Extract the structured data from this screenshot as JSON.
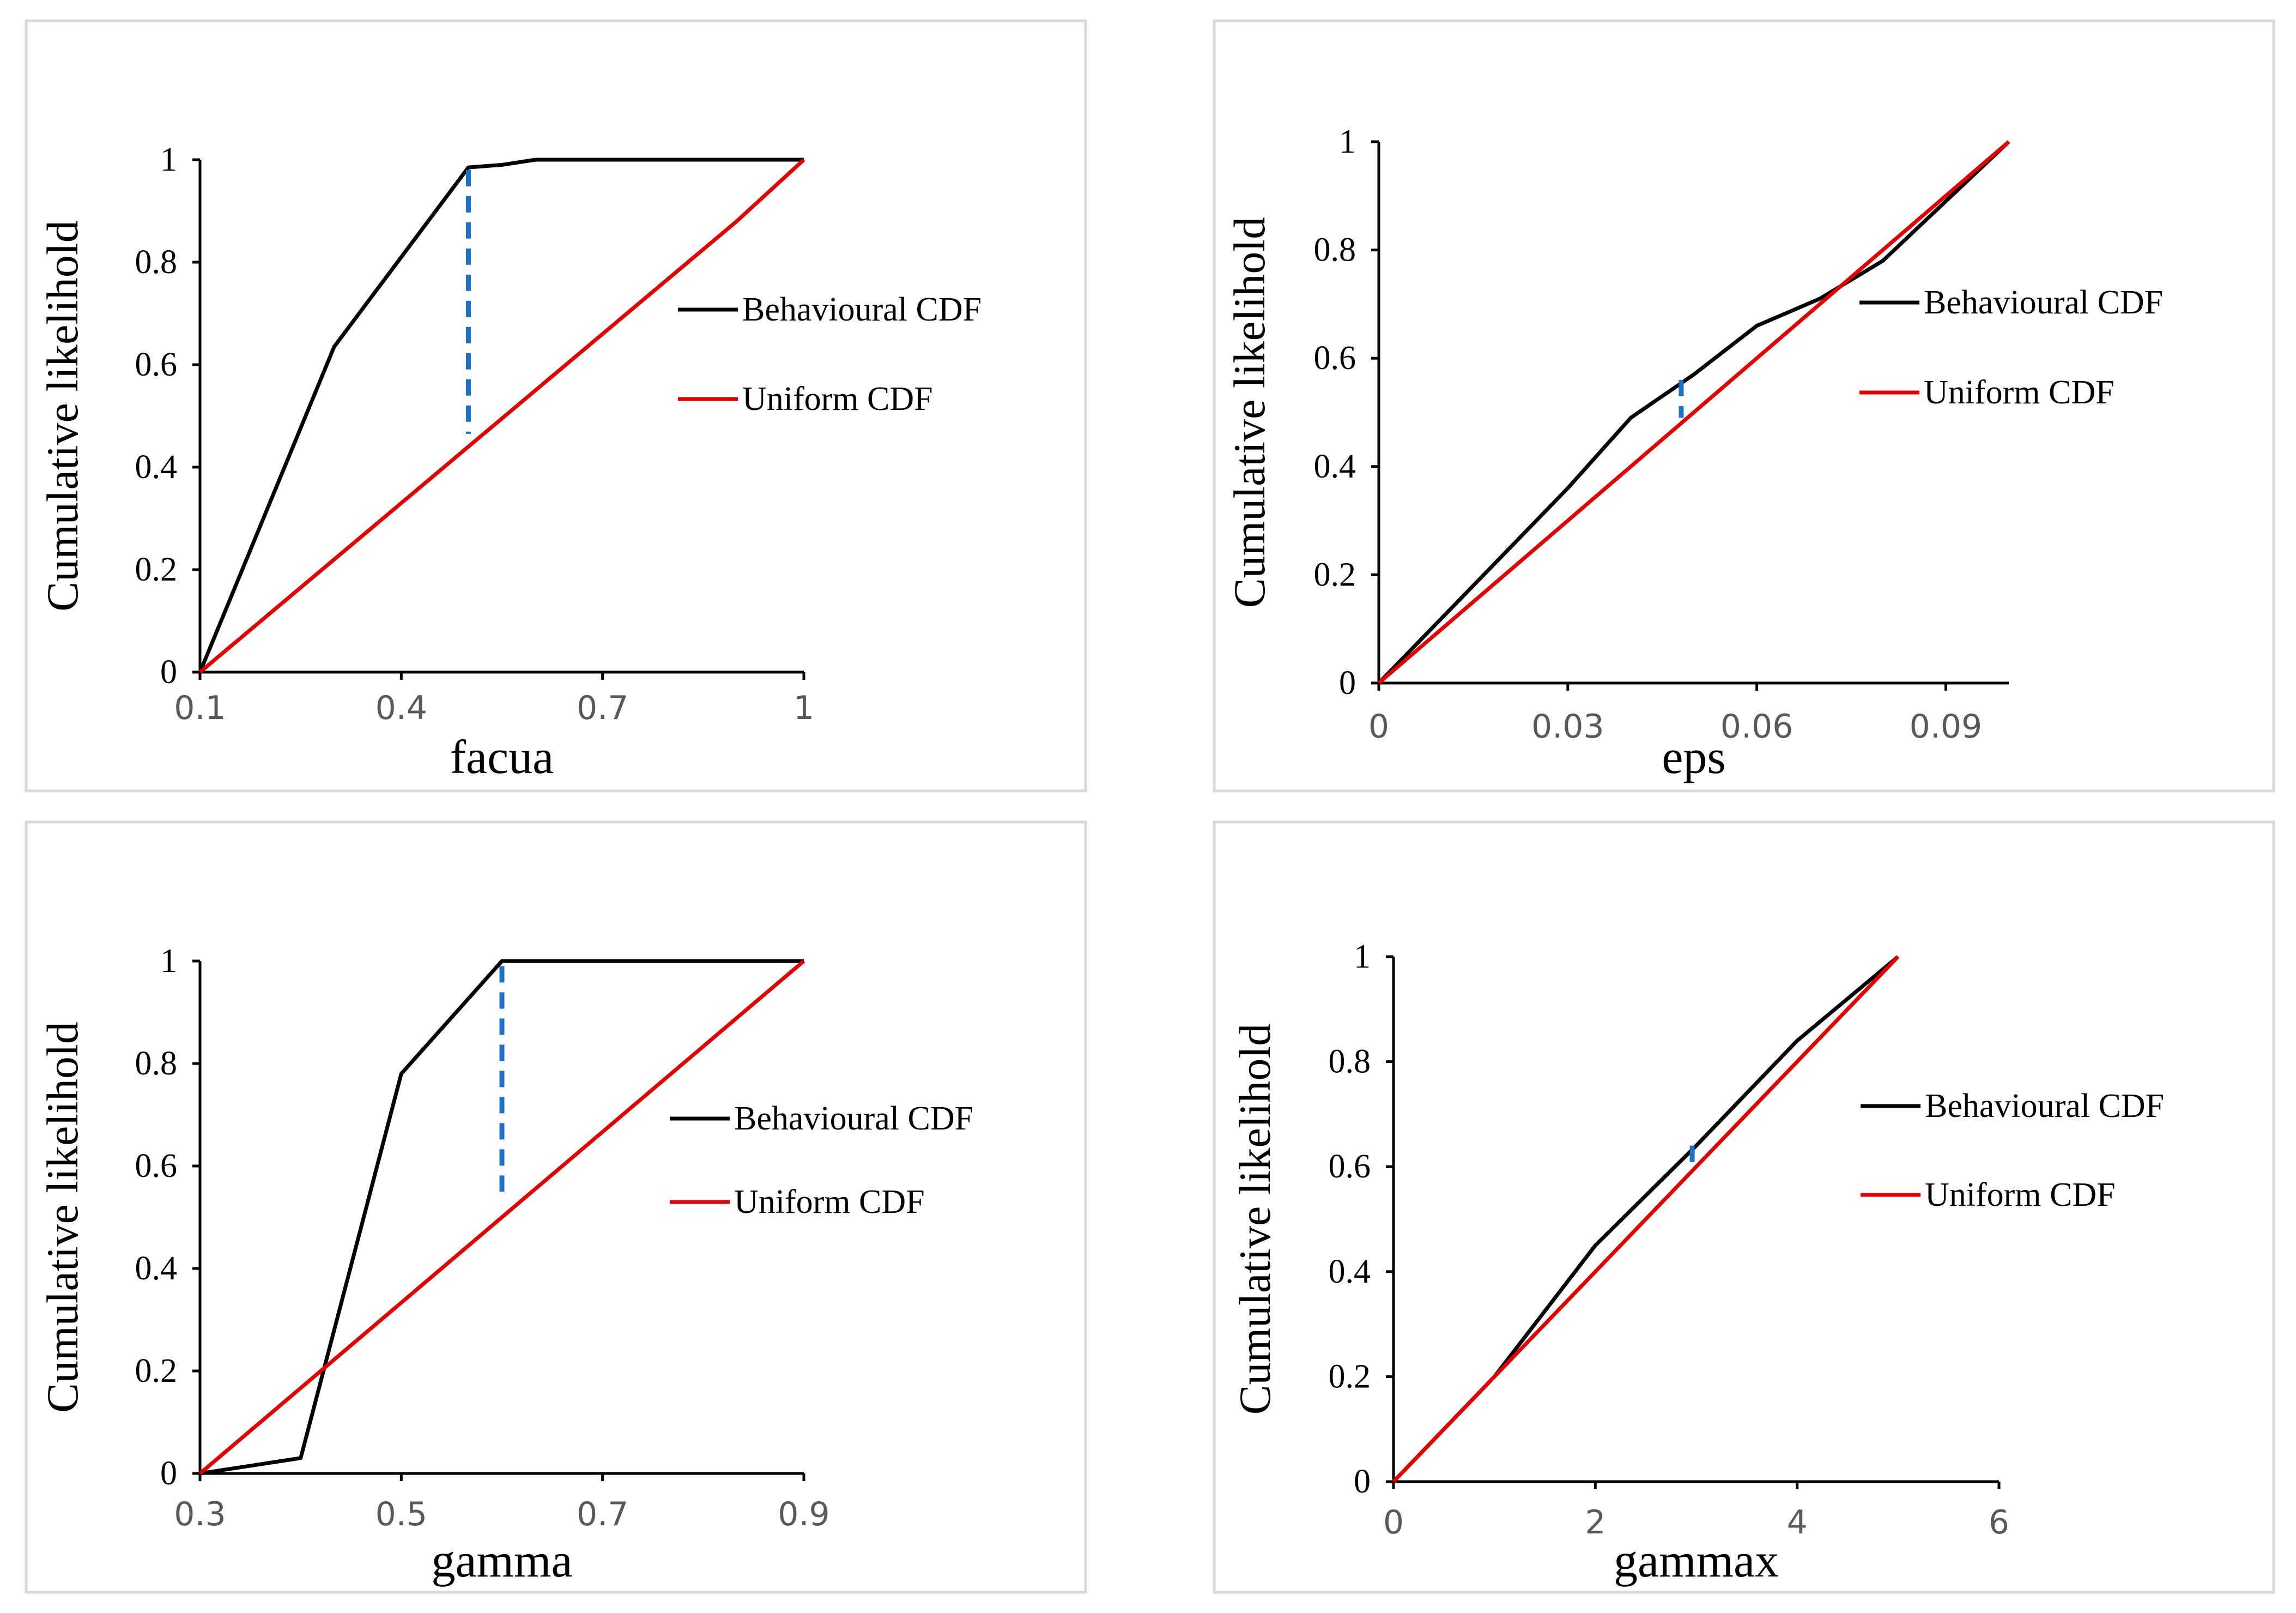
{
  "legend": {
    "behavioural": "Behavioural CDF",
    "uniform": "Uniform CDF"
  },
  "colors": {
    "behavioural": "#000000",
    "uniform": "#e00000",
    "ks": "#1f6fc5"
  },
  "chart_data": [
    {
      "type": "line",
      "title": "",
      "xlabel": "facua",
      "ylabel": "Cumulative likelihold",
      "xlim": [
        0.1,
        1.0
      ],
      "ylim": [
        0,
        1
      ],
      "xticks": [
        0.1,
        0.4,
        0.7,
        1.0
      ],
      "xtick_labels": [
        "0.1",
        "0.4",
        "0.7",
        "1"
      ],
      "yticks": [
        0,
        0.2,
        0.4,
        0.6,
        0.8,
        1
      ],
      "ytick_labels": [
        "0",
        "0.2",
        "0.4",
        "0.6",
        "0.8",
        "1"
      ],
      "series": [
        {
          "name": "Behavioural CDF",
          "x": [
            0.1,
            0.3,
            0.4,
            0.5,
            0.55,
            0.6,
            1.0
          ],
          "y": [
            0,
            0.635,
            0.81,
            0.985,
            0.99,
            1.0,
            1.0
          ]
        },
        {
          "name": "Uniform CDF",
          "x": [
            0.1,
            0.9,
            1.0
          ],
          "y": [
            0,
            0.88,
            1.0
          ]
        }
      ],
      "ks_statistic": {
        "x": 0.5,
        "y_from": 0.465,
        "y_to": 0.98
      }
    },
    {
      "type": "line",
      "title": "",
      "xlabel": "eps",
      "ylabel": "Cumulative likelihold",
      "xlim": [
        0,
        0.1
      ],
      "ylim": [
        0,
        1
      ],
      "xticks": [
        0,
        0.03,
        0.06,
        0.09
      ],
      "xtick_labels": [
        "0",
        "0.03",
        "0.06",
        "0.09"
      ],
      "yticks": [
        0,
        0.2,
        0.4,
        0.6,
        0.8,
        1
      ],
      "ytick_labels": [
        "0",
        "0.2",
        "0.4",
        "0.6",
        "0.8",
        "1"
      ],
      "series": [
        {
          "name": "Behavioural CDF",
          "x": [
            0,
            0.01,
            0.02,
            0.03,
            0.04,
            0.05,
            0.06,
            0.07,
            0.08,
            0.09,
            0.1
          ],
          "y": [
            0,
            0.12,
            0.24,
            0.36,
            0.49,
            0.57,
            0.66,
            0.71,
            0.78,
            0.89,
            1.0
          ]
        },
        {
          "name": "Uniform CDF",
          "x": [
            0,
            0.1
          ],
          "y": [
            0,
            1.0
          ]
        }
      ],
      "ks_statistic": {
        "x": 0.048,
        "y_from": 0.49,
        "y_to": 0.56
      }
    },
    {
      "type": "line",
      "title": "",
      "xlabel": "gamma",
      "ylabel": "Cumulative likelihold",
      "xlim": [
        0.3,
        0.9
      ],
      "ylim": [
        0,
        1
      ],
      "xticks": [
        0.3,
        0.5,
        0.7,
        0.9
      ],
      "xtick_labels": [
        "0.3",
        "0.5",
        "0.7",
        "0.9"
      ],
      "yticks": [
        0,
        0.2,
        0.4,
        0.6,
        0.8,
        1
      ],
      "ytick_labels": [
        "0",
        "0.2",
        "0.4",
        "0.6",
        "0.8",
        "1"
      ],
      "series": [
        {
          "name": "Behavioural CDF",
          "x": [
            0.3,
            0.35,
            0.4,
            0.5,
            0.6,
            0.7,
            0.9
          ],
          "y": [
            0,
            0.015,
            0.03,
            0.78,
            1.0,
            1.0,
            1.0
          ]
        },
        {
          "name": "Uniform CDF",
          "x": [
            0.3,
            0.9
          ],
          "y": [
            0,
            1.0
          ]
        }
      ],
      "ks_statistic": {
        "x": 0.6,
        "y_from": 0.55,
        "y_to": 0.99
      }
    },
    {
      "type": "line",
      "title": "",
      "xlabel": "gammax",
      "ylabel": "Cumulative likelihold",
      "xlim": [
        0,
        6
      ],
      "ylim": [
        0,
        1
      ],
      "xticks": [
        0,
        2,
        4,
        6
      ],
      "xtick_labels": [
        "0",
        "2",
        "4",
        "6"
      ],
      "yticks": [
        0,
        0.2,
        0.4,
        0.6,
        0.8,
        1
      ],
      "ytick_labels": [
        "0",
        "0.2",
        "0.4",
        "0.6",
        "0.8",
        "1"
      ],
      "series": [
        {
          "name": "Behavioural CDF",
          "x": [
            0,
            1,
            2,
            3,
            4,
            5
          ],
          "y": [
            0,
            0.2,
            0.45,
            0.64,
            0.84,
            1.0
          ]
        },
        {
          "name": "Uniform CDF",
          "x": [
            0,
            5
          ],
          "y": [
            0,
            1.0
          ]
        }
      ],
      "ks_statistic": {
        "x": 2.96,
        "y_from": 0.6,
        "y_to": 0.64
      }
    }
  ]
}
